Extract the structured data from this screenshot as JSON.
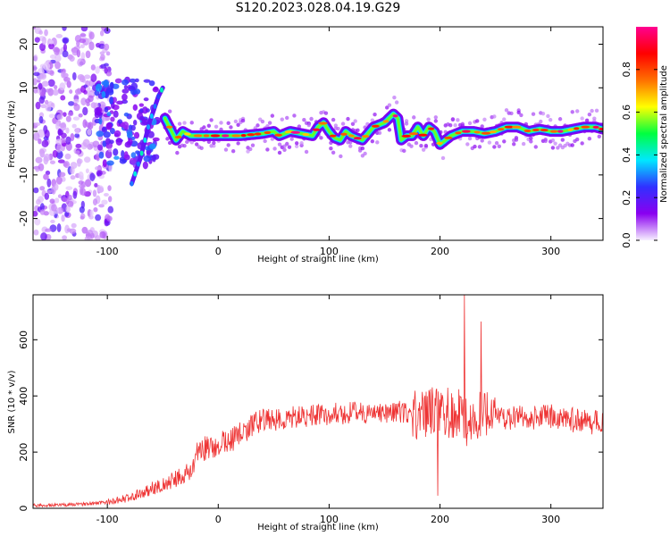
{
  "title": "S120.2023.028.04.19.G29",
  "chart_data": [
    {
      "type": "heatmap",
      "xlabel": "Height of straight line (km)",
      "ylabel": "Frequency (Hz)",
      "xlim": [
        -167,
        347
      ],
      "ylim": [
        -25,
        24
      ],
      "xticks": [
        -100,
        0,
        100,
        200,
        300
      ],
      "xtick_labels": [
        "-100",
        "0",
        "100",
        "200",
        "300"
      ],
      "yticks": [
        -20,
        -10,
        0,
        10,
        20
      ],
      "ytick_labels": [
        "-20",
        "-10",
        "0",
        "10",
        "20"
      ],
      "colorbar": {
        "label": "Normalized spectral amplitude",
        "range": [
          0,
          1
        ],
        "ticks": [
          0.0,
          0.2,
          0.4,
          0.6,
          0.8
        ],
        "tick_labels": [
          "0.0",
          "0.2",
          "0.4",
          "0.6",
          "0.8"
        ],
        "colormap": [
          "#f7f0ff",
          "#8a00f0",
          "#3030ff",
          "#00e8ff",
          "#00ff40",
          "#ffff00",
          "#ff7000",
          "#ff0000",
          "#ff0090"
        ]
      },
      "ridge": {
        "x": [
          -48,
          -44,
          -38,
          -32,
          -25,
          -15,
          0,
          20,
          40,
          50,
          55,
          65,
          75,
          85,
          90,
          95,
          100,
          105,
          110,
          115,
          120,
          130,
          140,
          150,
          158,
          162,
          165,
          170,
          175,
          180,
          185,
          190,
          195,
          200,
          205,
          210,
          220,
          230,
          240,
          250,
          260,
          270,
          280,
          290,
          300,
          310,
          320,
          330,
          340,
          347
        ],
        "y": [
          3,
          1,
          -2,
          0,
          -1,
          -1,
          -1,
          -1,
          -0.5,
          0,
          -1,
          0,
          -0.5,
          -1,
          1,
          2,
          0,
          -1.5,
          -2,
          0,
          -1,
          -2,
          1,
          2,
          4,
          3,
          -2,
          -1,
          -1,
          1,
          -1,
          1,
          0,
          -3,
          -2,
          -1,
          0,
          0,
          -0.5,
          0,
          1,
          1,
          0,
          0.5,
          0,
          0,
          0.5,
          1,
          1,
          0.5
        ]
      },
      "early_ridge": {
        "x": [
          -78,
          -74,
          -70,
          -66,
          -62,
          -58,
          -54,
          -50
        ],
        "y": [
          -12,
          -9,
          -6,
          -2,
          2,
          5,
          8,
          10
        ]
      }
    },
    {
      "type": "line",
      "xlabel": "Height of straight line (km)",
      "ylabel": "SNR (10 * v/v)",
      "xlim": [
        -167,
        347
      ],
      "ylim": [
        0,
        760
      ],
      "xticks": [
        -100,
        0,
        100,
        200,
        300
      ],
      "xtick_labels": [
        "-100",
        "0",
        "100",
        "200",
        "300"
      ],
      "yticks": [
        0,
        200,
        400,
        600
      ],
      "ytick_labels": [
        "0",
        "200",
        "400",
        "600"
      ],
      "color": "#ee3333",
      "trend": {
        "x": [
          -167,
          -140,
          -120,
          -100,
          -90,
          -80,
          -70,
          -60,
          -50,
          -40,
          -30,
          -22,
          -20,
          -10,
          0,
          10,
          20,
          30,
          40,
          50,
          60,
          80,
          100,
          120,
          140,
          160,
          180,
          200,
          210,
          220,
          225,
          230,
          240,
          250,
          260,
          280,
          300,
          320,
          340,
          347
        ],
        "y": [
          10,
          12,
          15,
          22,
          30,
          40,
          55,
          70,
          85,
          100,
          120,
          140,
          200,
          215,
          230,
          240,
          265,
          290,
          320,
          310,
          320,
          330,
          335,
          340,
          340,
          345,
          340,
          345,
          340,
          330,
          310,
          300,
          340,
          320,
          325,
          320,
          325,
          315,
          305,
          300
        ]
      },
      "peaks": [
        {
          "x": 222,
          "y": 760
        },
        {
          "x": 237,
          "y": 665
        },
        {
          "x": 198,
          "y": 45
        }
      ]
    }
  ]
}
